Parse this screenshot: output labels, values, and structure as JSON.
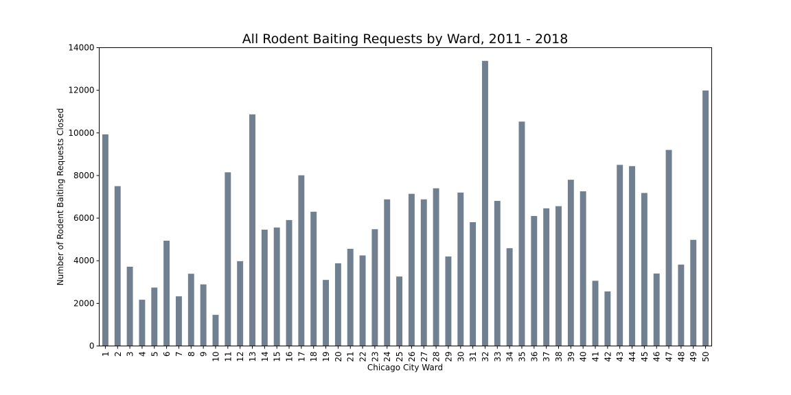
{
  "chart_data": {
    "type": "bar",
    "title": "All Rodent Baiting Requests by Ward, 2011 - 2018",
    "xlabel": "Chicago City Ward",
    "ylabel": "Number of Rodent Baiting Requests Closed",
    "ylim": [
      0,
      14000
    ],
    "yticks": [
      0,
      2000,
      4000,
      6000,
      8000,
      10000,
      12000,
      14000
    ],
    "grid": false,
    "bar_color": "#708090",
    "categories": [
      "1",
      "2",
      "3",
      "4",
      "5",
      "6",
      "7",
      "8",
      "9",
      "10",
      "11",
      "12",
      "13",
      "14",
      "15",
      "16",
      "17",
      "18",
      "19",
      "20",
      "21",
      "22",
      "23",
      "24",
      "25",
      "26",
      "27",
      "28",
      "29",
      "30",
      "31",
      "32",
      "33",
      "34",
      "35",
      "36",
      "37",
      "38",
      "39",
      "40",
      "41",
      "42",
      "43",
      "44",
      "45",
      "46",
      "47",
      "48",
      "49",
      "50"
    ],
    "values": [
      9930,
      7500,
      3720,
      2170,
      2740,
      4940,
      2330,
      3390,
      2890,
      1460,
      8150,
      3980,
      10870,
      5460,
      5560,
      5910,
      8010,
      6300,
      3100,
      3880,
      4560,
      4250,
      5480,
      6880,
      3260,
      7140,
      6880,
      7400,
      4200,
      7200,
      5810,
      13380,
      6810,
      4590,
      10530,
      6100,
      6460,
      6560,
      7800,
      7260,
      3060,
      2560,
      8500,
      8440,
      7180,
      3400,
      9200,
      3820,
      4980,
      11990
    ]
  }
}
